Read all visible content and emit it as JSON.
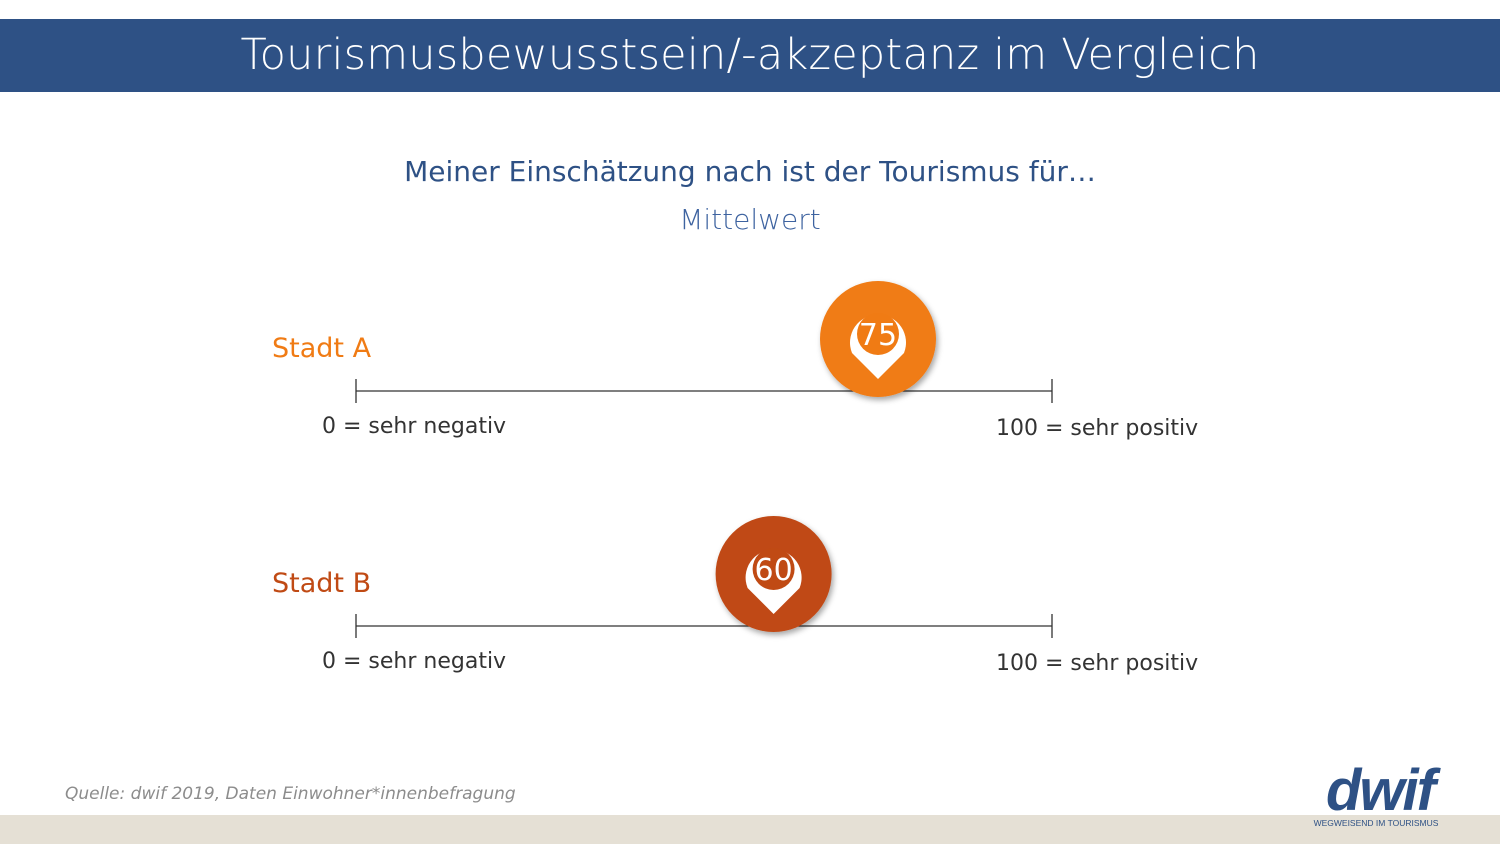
{
  "header": {
    "title": "Tourismusbewusstsein/-akzeptanz im Vergleich"
  },
  "chart_data": {
    "type": "scatter",
    "title": "Meiner Einschätzung nach ist der Tourismus für…",
    "subtitle": "Mittelwert",
    "xlim": [
      0,
      100
    ],
    "min_label": "0 = sehr negativ",
    "max_label": "100 = sehr positiv",
    "series": [
      {
        "name": "Stadt A",
        "value": 75,
        "color": "#f07b14"
      },
      {
        "name": "Stadt B",
        "value": 60,
        "color": "#c04a14"
      }
    ]
  },
  "footer": {
    "source": "Quelle: dwif 2019, Daten Einwohner*innenbefragung"
  },
  "logo": {
    "wordmark": "dwif",
    "tagline": "WEGWEISEND IM TOURISMUS",
    "color": "#2e5185"
  }
}
